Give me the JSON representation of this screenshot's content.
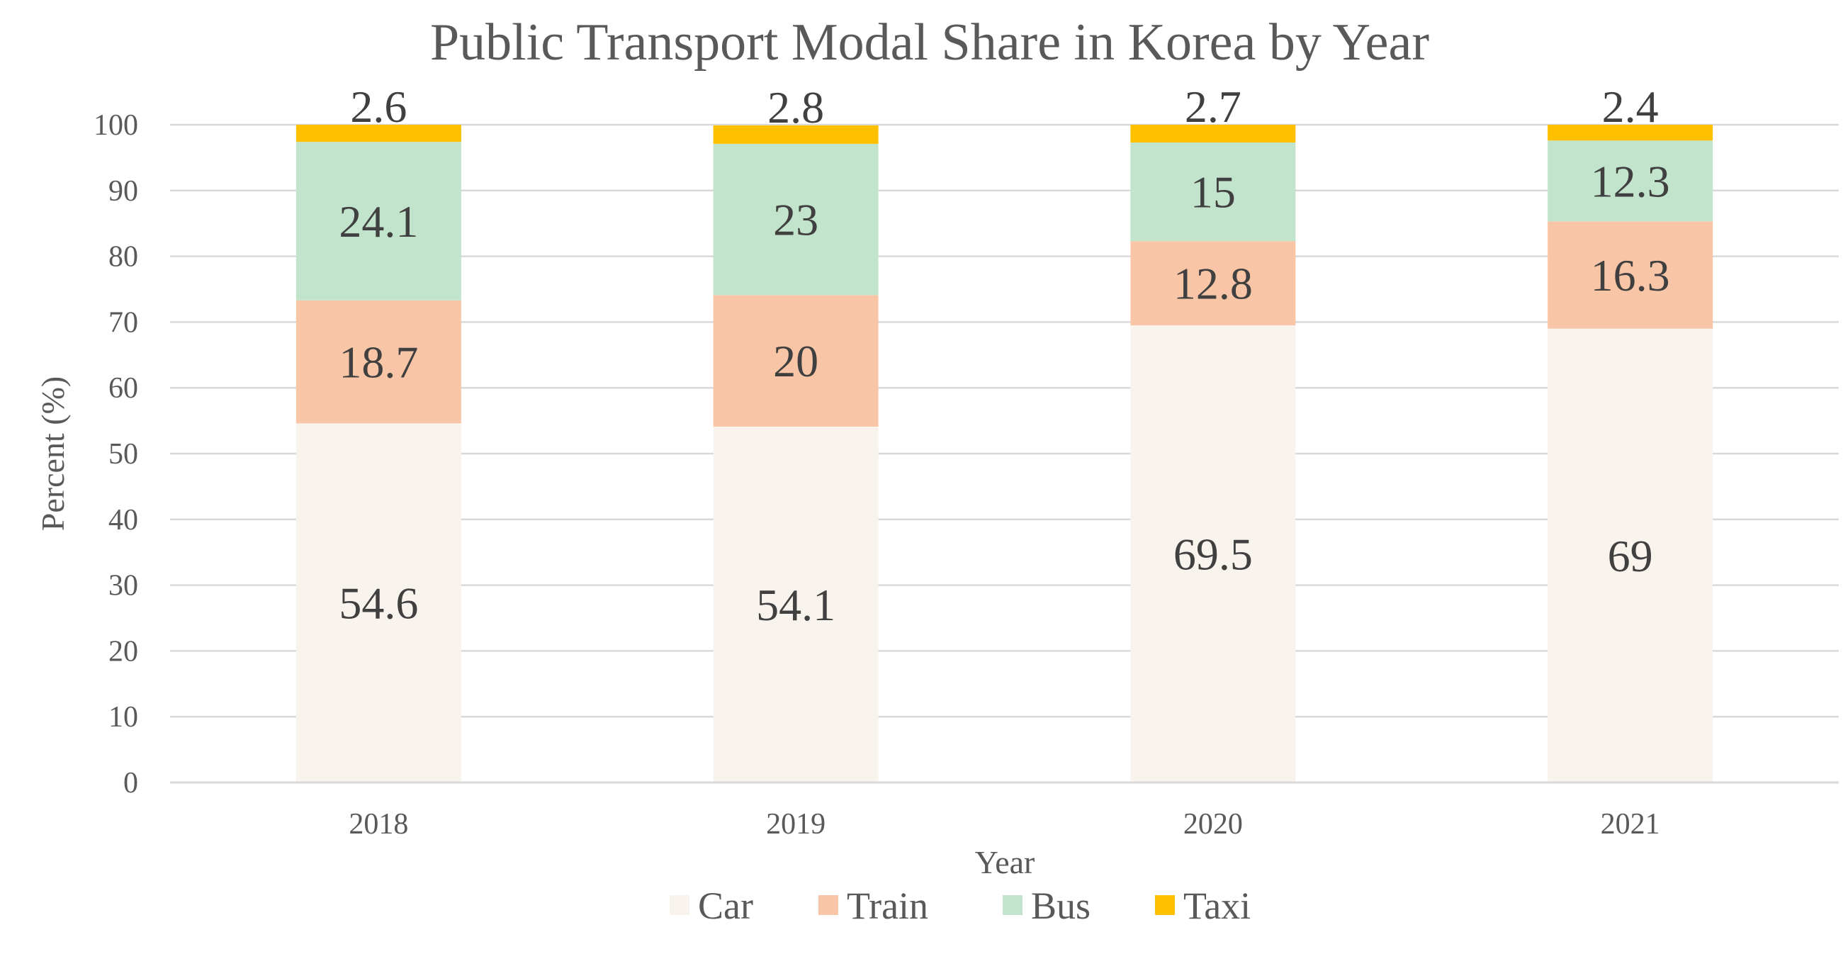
{
  "chart_data": {
    "type": "bar",
    "stacked": true,
    "title": "Public Transport Modal Share in Korea by Year",
    "xlabel": "Year",
    "ylabel": "Percent (%)",
    "ylim": [
      0,
      100
    ],
    "yticks": [
      0,
      10,
      20,
      30,
      40,
      50,
      60,
      70,
      80,
      90,
      100
    ],
    "categories": [
      "2018",
      "2019",
      "2020",
      "2021"
    ],
    "series": [
      {
        "name": "Car",
        "color": "#f8f3ec",
        "values": [
          54.6,
          54.1,
          69.5,
          69
        ]
      },
      {
        "name": "Train",
        "color": "#f8c6a6",
        "values": [
          18.7,
          20,
          12.8,
          16.3
        ]
      },
      {
        "name": "Bus",
        "color": "#c3e4cc",
        "values": [
          24.1,
          23,
          15,
          12.3
        ]
      },
      {
        "name": "Taxi",
        "color": "#ffc000",
        "values": [
          2.6,
          2.8,
          2.7,
          2.4
        ]
      }
    ],
    "grid": true,
    "legend_position": "bottom-center"
  }
}
